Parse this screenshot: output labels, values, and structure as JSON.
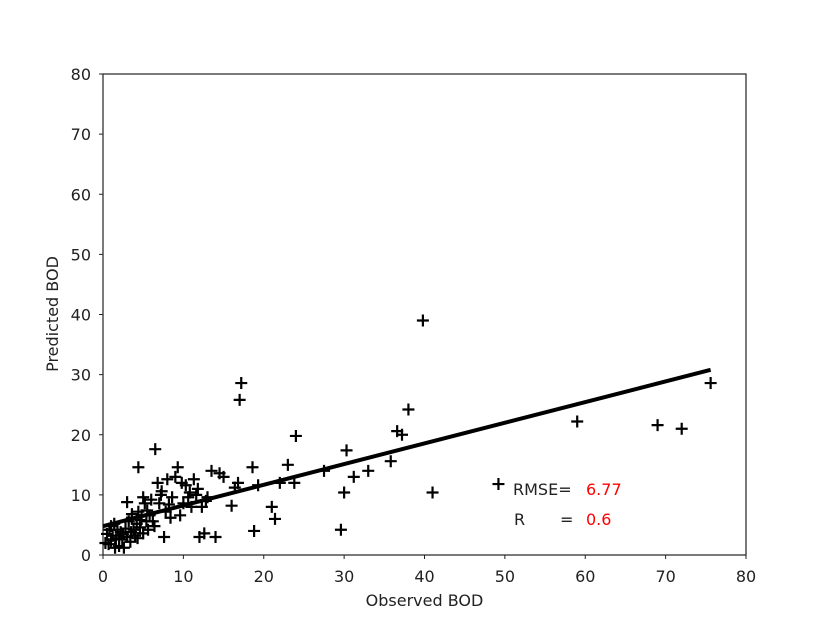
{
  "chart_data": {
    "type": "scatter",
    "xlabel": "Observed BOD",
    "ylabel": "Predicted BOD",
    "xlim": [
      0,
      80
    ],
    "ylim": [
      0,
      80
    ],
    "xticks": [
      "0",
      "10",
      "20",
      "30",
      "40",
      "50",
      "60",
      "70",
      "80"
    ],
    "yticks": [
      "0",
      "10",
      "20",
      "30",
      "40",
      "50",
      "60",
      "70",
      "80"
    ],
    "grid": false,
    "marker": "plus",
    "marker_color": "#000000",
    "points": [
      [
        0.3,
        2.0
      ],
      [
        0.5,
        3.5
      ],
      [
        0.7,
        1.8
      ],
      [
        1.0,
        4.8
      ],
      [
        1.2,
        3.2
      ],
      [
        1.4,
        5.2
      ],
      [
        1.6,
        2.6
      ],
      [
        1.8,
        4.2
      ],
      [
        2.0,
        1.5
      ],
      [
        2.2,
        3.8
      ],
      [
        2.4,
        2.6
      ],
      [
        2.6,
        1.2
      ],
      [
        2.8,
        4.4
      ],
      [
        3.0,
        3.0
      ],
      [
        3.2,
        5.6
      ],
      [
        3.4,
        2.2
      ],
      [
        3.6,
        6.2
      ],
      [
        3.8,
        4.2
      ],
      [
        4.0,
        3.2
      ],
      [
        4.2,
        5.2
      ],
      [
        4.4,
        7.2
      ],
      [
        4.6,
        4.6
      ],
      [
        4.8,
        6.6
      ],
      [
        5.0,
        3.6
      ],
      [
        5.2,
        8.6
      ],
      [
        5.4,
        5.6
      ],
      [
        5.6,
        4.2
      ],
      [
        5.8,
        6.6
      ],
      [
        6.0,
        9.2
      ],
      [
        6.2,
        5.6
      ],
      [
        6.5,
        17.6
      ],
      [
        6.8,
        12.0
      ],
      [
        7.0,
        8.6
      ],
      [
        7.3,
        10.6
      ],
      [
        7.6,
        3.0
      ],
      [
        7.8,
        7.2
      ],
      [
        8.0,
        12.6
      ],
      [
        8.4,
        6.2
      ],
      [
        8.6,
        9.6
      ],
      [
        9.0,
        13.0
      ],
      [
        9.3,
        14.6
      ],
      [
        9.6,
        6.6
      ],
      [
        10.0,
        8.6
      ],
      [
        10.3,
        11.6
      ],
      [
        10.6,
        9.6
      ],
      [
        11.0,
        8.0
      ],
      [
        11.3,
        12.6
      ],
      [
        11.6,
        10.0
      ],
      [
        12.0,
        3.0
      ],
      [
        12.3,
        8.0
      ],
      [
        12.6,
        3.6
      ],
      [
        13.0,
        9.6
      ],
      [
        13.5,
        14.0
      ],
      [
        14.0,
        3.0
      ],
      [
        14.5,
        13.6
      ],
      [
        15.0,
        13.0
      ],
      [
        16.0,
        8.2
      ],
      [
        16.4,
        11.2
      ],
      [
        16.8,
        12.0
      ],
      [
        17.0,
        25.8
      ],
      [
        17.2,
        28.6
      ],
      [
        18.6,
        14.6
      ],
      [
        18.8,
        4.0
      ],
      [
        19.3,
        11.6
      ],
      [
        21.0,
        8.0
      ],
      [
        21.4,
        6.0
      ],
      [
        22.0,
        12.0
      ],
      [
        23.0,
        15.0
      ],
      [
        23.8,
        12.0
      ],
      [
        24.0,
        19.8
      ],
      [
        27.5,
        14.0
      ],
      [
        29.6,
        4.2
      ],
      [
        30.0,
        10.4
      ],
      [
        30.3,
        17.4
      ],
      [
        31.2,
        13.0
      ],
      [
        33.0,
        14.0
      ],
      [
        35.8,
        15.6
      ],
      [
        36.6,
        20.6
      ],
      [
        37.2,
        20.0
      ],
      [
        38.0,
        24.2
      ],
      [
        39.8,
        39.0
      ],
      [
        41.0,
        10.4
      ],
      [
        49.2,
        11.8
      ],
      [
        59.0,
        22.2
      ],
      [
        69.0,
        21.6
      ],
      [
        72.0,
        21.0
      ],
      [
        75.6,
        28.6
      ],
      [
        0.8,
        4.2
      ],
      [
        1.5,
        1.2
      ],
      [
        2.5,
        3.4
      ],
      [
        3.5,
        3.8
      ],
      [
        4.3,
        2.8
      ],
      [
        4.7,
        5.8
      ],
      [
        5.5,
        7.4
      ],
      [
        6.4,
        4.8
      ],
      [
        7.2,
        10.0
      ],
      [
        8.2,
        8.4
      ],
      [
        9.8,
        12.0
      ],
      [
        10.8,
        10.4
      ],
      [
        11.8,
        11.0
      ],
      [
        12.8,
        9.0
      ],
      [
        2.0,
        2.8
      ],
      [
        1.0,
        2.4
      ],
      [
        3.0,
        8.8
      ],
      [
        4.4,
        14.6
      ],
      [
        3.6,
        6.8
      ],
      [
        5.0,
        9.6
      ]
    ],
    "fit_line": {
      "x": [
        0,
        75.6
      ],
      "y": [
        4.8,
        30.8
      ]
    },
    "annotations": {
      "rmse_label": "RMSE=",
      "rmse_value": "6.77",
      "r_label": "R",
      "r_eq": "=",
      "r_value": "0.6",
      "value_color": "#ff0000"
    }
  }
}
